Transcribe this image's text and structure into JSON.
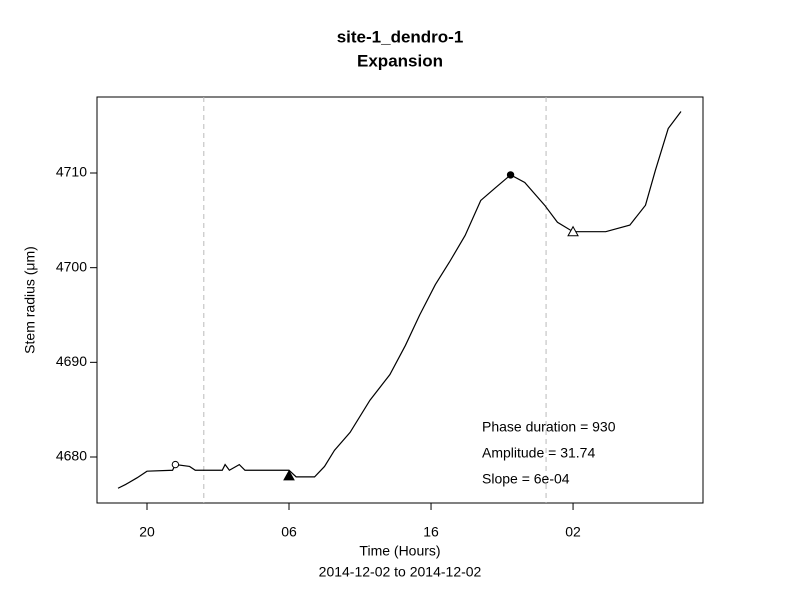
{
  "chart_data": {
    "type": "line",
    "title": "site-1_dendro-1",
    "subtitle": "Expansion",
    "x_label": "Time (Hours)",
    "y_label": "Stem radius (μm)",
    "date_range": "2014-12-02 to 2014-12-02",
    "x": [
      17.96,
      18.5,
      19.3,
      20.0,
      21.8,
      22.0,
      23.0,
      23.4,
      25.3,
      25.5,
      25.8,
      26.5,
      26.9,
      30.0,
      30.5,
      31.8,
      32.5,
      33.2,
      34.3,
      35.7,
      37.1,
      38.2,
      39.2,
      40.3,
      41.3,
      42.4,
      43.5,
      44.5,
      45.6,
      46.6,
      48.0,
      48.9,
      50.0,
      52.3,
      54.0,
      55.1,
      55.8,
      56.7,
      57.6
    ],
    "values": [
      4676.7,
      4677.1,
      4677.8,
      4678.5,
      4678.6,
      4679.2,
      4679.0,
      4678.6,
      4678.6,
      4679.2,
      4678.6,
      4679.2,
      4678.6,
      4678.6,
      4677.9,
      4677.9,
      4679.0,
      4680.7,
      4682.6,
      4686.0,
      4688.7,
      4691.8,
      4695.0,
      4698.2,
      4700.6,
      4703.4,
      4707.1,
      4708.4,
      4709.8,
      4709.0,
      4706.6,
      4704.8,
      4703.8,
      4703.8,
      4704.5,
      4706.6,
      4710.3,
      4714.7,
      4716.5
    ],
    "color": "#000000",
    "markers": [
      {
        "x": 22.0,
        "y": 4679.2,
        "shape": "circle",
        "filled": false
      },
      {
        "x": 30.0,
        "y": 4678.0,
        "shape": "triangle",
        "filled": true
      },
      {
        "x": 45.6,
        "y": 4709.8,
        "shape": "circle",
        "filled": true
      },
      {
        "x": 50.0,
        "y": 4703.8,
        "shape": "triangle",
        "filled": false
      }
    ],
    "vlines": [
      24.0,
      48.1
    ],
    "annotations": [
      "Phase duration = 930",
      "Amplitude = 31.74",
      "Slope = 6e-04"
    ],
    "xlim": [
      16.48,
      59.15
    ],
    "ylim": [
      4675.14,
      4718.03
    ],
    "xticks": [
      20,
      {
        "value": 30,
        "label": "06"
      },
      {
        "value": 40,
        "label": "16"
      },
      {
        "value": 50,
        "label": "02"
      }
    ],
    "yticks": [
      4680,
      4690,
      4700,
      4710
    ]
  }
}
